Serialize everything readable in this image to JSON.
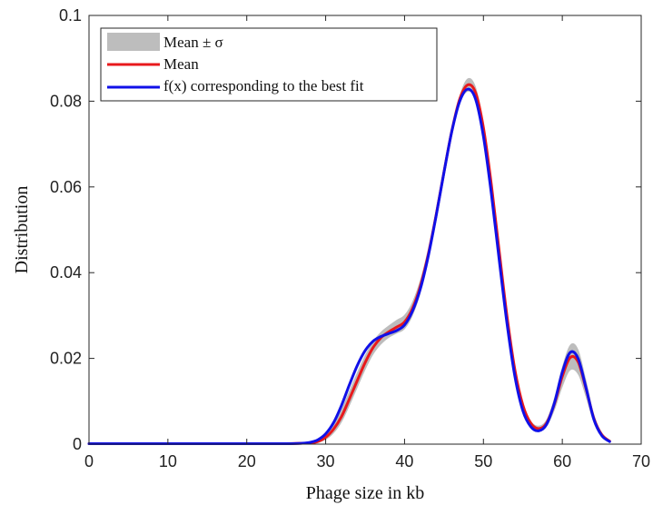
{
  "chart_data": {
    "type": "line",
    "title": "",
    "xlabel": "Phage size in kb",
    "ylabel": "Distribution",
    "xlim": [
      0,
      70
    ],
    "ylim": [
      0,
      0.1
    ],
    "xticks": [
      0,
      10,
      20,
      30,
      40,
      50,
      60,
      70
    ],
    "xtick_labels": [
      "0",
      "10",
      "20",
      "30",
      "40",
      "50",
      "60",
      "70"
    ],
    "yticks": [
      0,
      0.02,
      0.04,
      0.06,
      0.08,
      0.1
    ],
    "ytick_labels": [
      "0",
      "0.02",
      "0.04",
      "0.06",
      "0.08",
      "0.1"
    ],
    "grid": false,
    "legend_position": "top-left",
    "x": [
      0,
      5,
      10,
      15,
      20,
      25,
      27,
      28,
      29,
      30,
      31,
      32,
      33,
      34,
      35,
      36,
      37,
      38,
      39,
      40,
      41,
      42,
      43,
      44,
      45,
      46,
      47,
      48,
      49,
      50,
      51,
      52,
      53,
      54,
      55,
      56,
      57,
      58,
      59,
      60,
      61,
      62,
      63,
      64,
      65,
      66
    ],
    "series": [
      {
        "name": "Mean ± σ",
        "kind": "band",
        "color": "#bdbdbd",
        "upper": [
          0.0003,
          0.0003,
          0.0003,
          0.0003,
          0.0003,
          0.0003,
          0.0004,
          0.0006,
          0.0011,
          0.0025,
          0.0048,
          0.0082,
          0.0125,
          0.0168,
          0.0208,
          0.024,
          0.0262,
          0.0277,
          0.029,
          0.0302,
          0.0333,
          0.0385,
          0.0458,
          0.0548,
          0.0648,
          0.0742,
          0.0815,
          0.0853,
          0.0835,
          0.0752,
          0.0618,
          0.046,
          0.0305,
          0.018,
          0.0098,
          0.0055,
          0.0043,
          0.0058,
          0.011,
          0.0182,
          0.0232,
          0.0222,
          0.0152,
          0.0072,
          0.0028,
          0.001
        ],
        "lower": [
          0.0,
          0.0,
          0.0,
          0.0,
          0.0,
          0.0,
          0.0,
          0.0001,
          0.0003,
          0.001,
          0.0025,
          0.005,
          0.0088,
          0.013,
          0.0172,
          0.0208,
          0.0232,
          0.0248,
          0.0258,
          0.0268,
          0.0298,
          0.035,
          0.0425,
          0.0518,
          0.062,
          0.0718,
          0.0792,
          0.0822,
          0.0805,
          0.0725,
          0.0595,
          0.044,
          0.029,
          0.0165,
          0.0084,
          0.0043,
          0.003,
          0.004,
          0.0078,
          0.0132,
          0.0172,
          0.0162,
          0.0108,
          0.0048,
          0.0016,
          0.0004
        ]
      },
      {
        "name": "Mean",
        "kind": "line",
        "color": "#e8191c",
        "values": [
          0.0001,
          0.0001,
          0.0001,
          0.0001,
          0.0001,
          0.0001,
          0.0002,
          0.0003,
          0.0006,
          0.0016,
          0.0035,
          0.0064,
          0.0105,
          0.0148,
          0.019,
          0.0225,
          0.0248,
          0.0262,
          0.0273,
          0.0285,
          0.0316,
          0.0368,
          0.0442,
          0.0534,
          0.0635,
          0.0731,
          0.0805,
          0.0838,
          0.082,
          0.0738,
          0.0606,
          0.045,
          0.0297,
          0.0172,
          0.0091,
          0.0049,
          0.0036,
          0.0049,
          0.0094,
          0.0158,
          0.0202,
          0.0192,
          0.013,
          0.006,
          0.0022,
          0.0007
        ]
      },
      {
        "name": "f(x) corresponding to the best fit",
        "kind": "line",
        "color": "#1010e8",
        "values": [
          0.0001,
          0.0001,
          0.0001,
          0.0001,
          0.0001,
          0.0001,
          0.0002,
          0.0004,
          0.001,
          0.0024,
          0.005,
          0.009,
          0.0138,
          0.0183,
          0.0218,
          0.024,
          0.0251,
          0.0258,
          0.0265,
          0.0278,
          0.031,
          0.0362,
          0.0438,
          0.0532,
          0.0634,
          0.073,
          0.08,
          0.0828,
          0.0805,
          0.0718,
          0.0585,
          0.043,
          0.028,
          0.0157,
          0.0078,
          0.0041,
          0.0031,
          0.0046,
          0.0096,
          0.0168,
          0.0214,
          0.02,
          0.0132,
          0.0058,
          0.002,
          0.0006
        ]
      }
    ]
  }
}
